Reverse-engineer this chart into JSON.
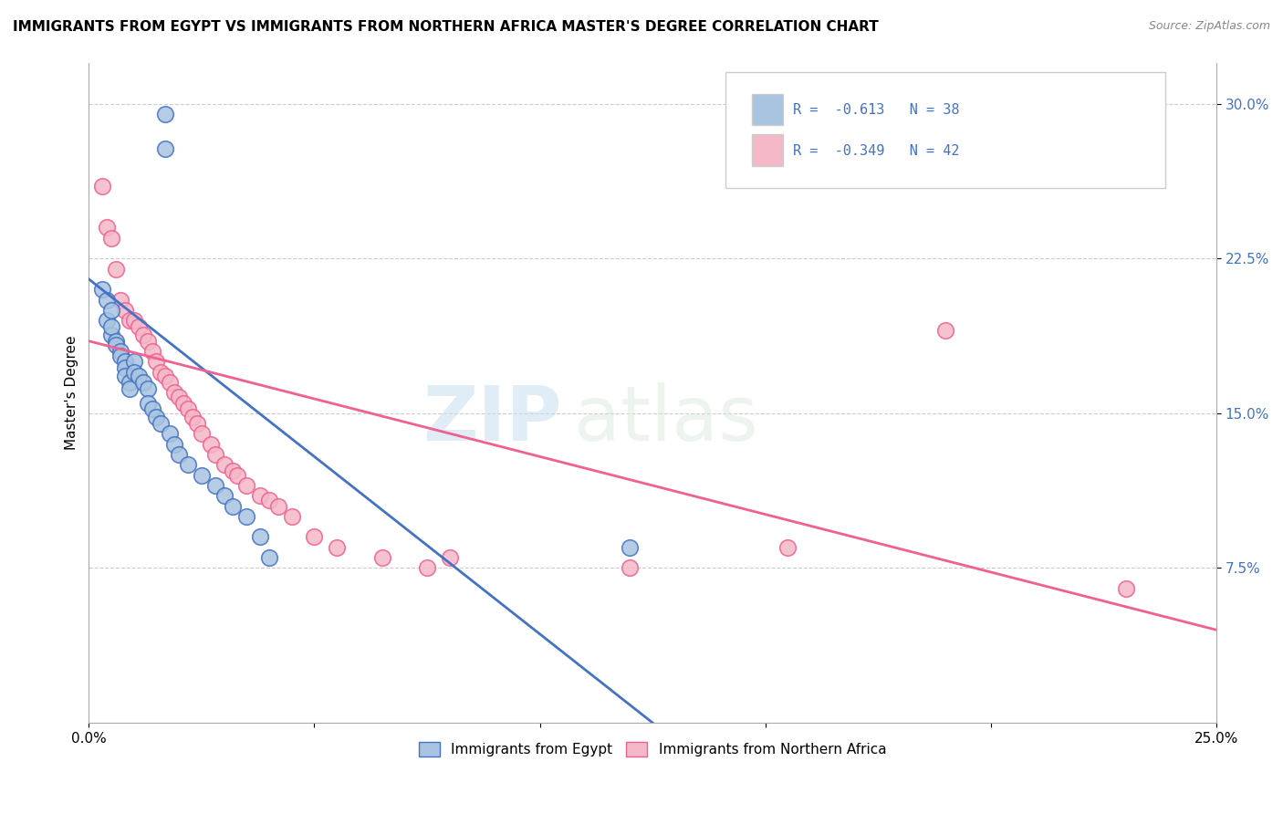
{
  "title": "IMMIGRANTS FROM EGYPT VS IMMIGRANTS FROM NORTHERN AFRICA MASTER'S DEGREE CORRELATION CHART",
  "source": "Source: ZipAtlas.com",
  "ylabel": "Master's Degree",
  "yticks": [
    "7.5%",
    "15.0%",
    "22.5%",
    "30.0%"
  ],
  "ytick_vals": [
    0.075,
    0.15,
    0.225,
    0.3
  ],
  "xlim": [
    0.0,
    0.25
  ],
  "ylim": [
    0.0,
    0.32
  ],
  "watermark": "ZIPatlas",
  "color_egypt": "#a8c4e0",
  "color_northern_africa": "#f4b8c8",
  "color_egypt_line": "#4472c4",
  "color_northern_africa_line": "#f06090",
  "color_text_blue": "#4472c4",
  "egypt_x": [
    0.017,
    0.017,
    0.003,
    0.004,
    0.004,
    0.005,
    0.005,
    0.005,
    0.006,
    0.006,
    0.007,
    0.007,
    0.008,
    0.008,
    0.008,
    0.009,
    0.009,
    0.01,
    0.01,
    0.011,
    0.012,
    0.013,
    0.013,
    0.014,
    0.015,
    0.016,
    0.018,
    0.019,
    0.02,
    0.022,
    0.025,
    0.028,
    0.03,
    0.032,
    0.035,
    0.038,
    0.04,
    0.12
  ],
  "egypt_y": [
    0.295,
    0.278,
    0.21,
    0.205,
    0.195,
    0.2,
    0.188,
    0.192,
    0.185,
    0.183,
    0.18,
    0.178,
    0.175,
    0.172,
    0.168,
    0.165,
    0.162,
    0.175,
    0.17,
    0.168,
    0.165,
    0.162,
    0.155,
    0.152,
    0.148,
    0.145,
    0.14,
    0.135,
    0.13,
    0.125,
    0.12,
    0.115,
    0.11,
    0.105,
    0.1,
    0.09,
    0.08,
    0.085
  ],
  "northern_africa_x": [
    0.003,
    0.004,
    0.005,
    0.006,
    0.007,
    0.008,
    0.009,
    0.01,
    0.011,
    0.012,
    0.013,
    0.014,
    0.015,
    0.016,
    0.017,
    0.018,
    0.019,
    0.02,
    0.021,
    0.022,
    0.023,
    0.024,
    0.025,
    0.027,
    0.028,
    0.03,
    0.032,
    0.033,
    0.035,
    0.038,
    0.04,
    0.042,
    0.045,
    0.05,
    0.055,
    0.065,
    0.075,
    0.08,
    0.12,
    0.155,
    0.19,
    0.23
  ],
  "northern_africa_y": [
    0.26,
    0.24,
    0.235,
    0.22,
    0.205,
    0.2,
    0.195,
    0.195,
    0.192,
    0.188,
    0.185,
    0.18,
    0.175,
    0.17,
    0.168,
    0.165,
    0.16,
    0.158,
    0.155,
    0.152,
    0.148,
    0.145,
    0.14,
    0.135,
    0.13,
    0.125,
    0.122,
    0.12,
    0.115,
    0.11,
    0.108,
    0.105,
    0.1,
    0.09,
    0.085,
    0.08,
    0.075,
    0.08,
    0.075,
    0.085,
    0.19,
    0.065
  ],
  "egypt_line_x0": 0.0,
  "egypt_line_y0": 0.215,
  "egypt_line_x1": 0.125,
  "egypt_line_y1": 0.0,
  "northern_africa_line_x0": 0.0,
  "northern_africa_line_y0": 0.185,
  "northern_africa_line_x1": 0.25,
  "northern_africa_line_y1": 0.045
}
